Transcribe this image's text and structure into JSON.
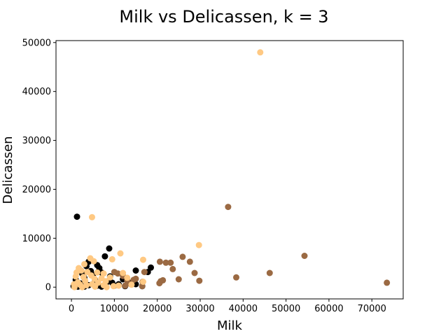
{
  "chart_data": {
    "type": "scatter",
    "title": "Milk vs Delicassen, k = 3",
    "xlabel": "Milk",
    "ylabel": "Delicassen",
    "xlim": [
      -3600,
      77300
    ],
    "ylim": [
      -2400,
      50400
    ],
    "xticks": [
      0,
      10000,
      20000,
      30000,
      40000,
      50000,
      60000,
      70000
    ],
    "yticks": [
      0,
      10000,
      20000,
      30000,
      40000,
      50000
    ],
    "grid": false,
    "legend": "none",
    "series": [
      {
        "color": "#000000",
        "points": [
          [
            1300,
            14400
          ],
          [
            8800,
            7900
          ],
          [
            7800,
            6300
          ],
          [
            4000,
            5200
          ],
          [
            3500,
            4300
          ],
          [
            6000,
            4500
          ],
          [
            2000,
            3500
          ],
          [
            4500,
            3300
          ],
          [
            6500,
            3900
          ],
          [
            18500,
            4000
          ],
          [
            15000,
            3400
          ],
          [
            17800,
            3100
          ],
          [
            2500,
            2800
          ],
          [
            5000,
            2500
          ],
          [
            7000,
            3000
          ],
          [
            9000,
            2200
          ],
          [
            3000,
            1900
          ],
          [
            1000,
            1500
          ],
          [
            5500,
            1500
          ],
          [
            8500,
            1200
          ],
          [
            12000,
            1600
          ],
          [
            13500,
            900
          ],
          [
            11000,
            600
          ],
          [
            15000,
            600
          ],
          [
            16500,
            200
          ],
          [
            2000,
            800
          ],
          [
            4000,
            400
          ],
          [
            6000,
            300
          ],
          [
            8000,
            500
          ],
          [
            10000,
            300
          ],
          [
            500,
            200
          ],
          [
            1500,
            100
          ],
          [
            3000,
            100
          ],
          [
            7000,
            100
          ],
          [
            9500,
            900
          ],
          [
            12500,
            200
          ]
        ]
      },
      {
        "color": "#b0ac9a",
        "points": []
      },
      {
        "color": "#9b6a43",
        "points": [
          [
            73500,
            900
          ],
          [
            54300,
            6400
          ],
          [
            46200,
            2900
          ],
          [
            38400,
            2000
          ],
          [
            36500,
            16400
          ],
          [
            29800,
            1300
          ],
          [
            28700,
            2900
          ],
          [
            27600,
            5200
          ],
          [
            25900,
            6200
          ],
          [
            25000,
            1600
          ],
          [
            23600,
            3700
          ],
          [
            23100,
            5000
          ],
          [
            22000,
            5000
          ],
          [
            21300,
            1400
          ],
          [
            20800,
            1200
          ],
          [
            20600,
            5200
          ],
          [
            20500,
            800
          ],
          [
            17000,
            3100
          ],
          [
            16600,
            1100
          ],
          [
            15000,
            1700
          ],
          [
            14500,
            1500
          ],
          [
            13000,
            1300
          ],
          [
            13800,
            600
          ],
          [
            16500,
            200
          ],
          [
            12500,
            300
          ],
          [
            10800,
            2800
          ],
          [
            10000,
            3100
          ],
          [
            12000,
            2300
          ]
        ]
      },
      {
        "color": "#ffc983",
        "points": [
          [
            44000,
            48000
          ],
          [
            4800,
            14300
          ],
          [
            29700,
            8600
          ],
          [
            11400,
            6900
          ],
          [
            16700,
            5600
          ],
          [
            9500,
            5700
          ],
          [
            4400,
            5900
          ],
          [
            5200,
            5300
          ],
          [
            3000,
            4700
          ],
          [
            1700,
            3900
          ],
          [
            2300,
            3400
          ],
          [
            3700,
            3100
          ],
          [
            6000,
            3000
          ],
          [
            7500,
            2800
          ],
          [
            12000,
            2900
          ],
          [
            9000,
            2000
          ],
          [
            13000,
            1900
          ],
          [
            1000,
            2200
          ],
          [
            2800,
            2100
          ],
          [
            4600,
            2400
          ],
          [
            5400,
            1700
          ],
          [
            7000,
            1800
          ],
          [
            8000,
            1200
          ],
          [
            3200,
            1300
          ],
          [
            1500,
            1000
          ],
          [
            600,
            600
          ],
          [
            2000,
            500
          ],
          [
            3500,
            400
          ],
          [
            4800,
            600
          ],
          [
            6200,
            900
          ],
          [
            7500,
            400
          ],
          [
            9800,
            200
          ],
          [
            11000,
            300
          ],
          [
            14000,
            500
          ],
          [
            16700,
            1100
          ],
          [
            700,
            0
          ],
          [
            2500,
            0
          ],
          [
            5500,
            100
          ],
          [
            8200,
            0
          ],
          [
            1200,
            3000
          ]
        ]
      }
    ]
  }
}
